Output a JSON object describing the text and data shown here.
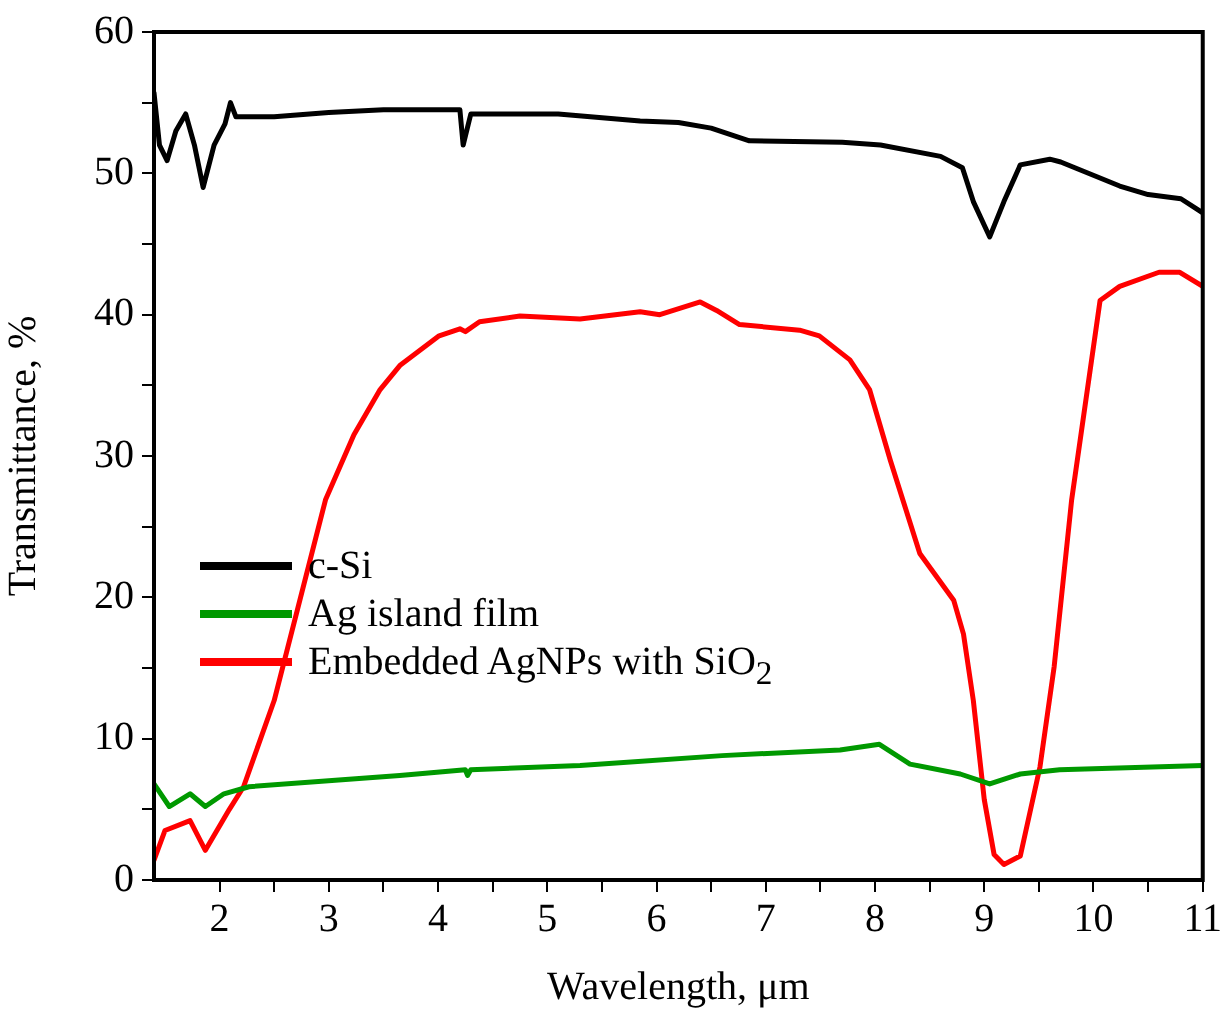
{
  "chart_data": {
    "type": "line",
    "xlabel": "Wavelength, μm",
    "ylabel": "Transmittance, %",
    "xlim": [
      1.4,
      11
    ],
    "ylim": [
      0,
      60
    ],
    "xticks": [
      2,
      {
        "value": 2.5,
        "label": null
      },
      3,
      {
        "value": 3.5,
        "label": null
      },
      4,
      {
        "value": 4.5,
        "label": null
      },
      5,
      {
        "value": 5.5,
        "label": null
      },
      6,
      {
        "value": 6.5,
        "label": null
      },
      7,
      {
        "value": 7.5,
        "label": null
      },
      8,
      {
        "value": 8.5,
        "label": null
      },
      9,
      {
        "value": 9.5,
        "label": null
      },
      10,
      {
        "value": 10.5,
        "label": null
      },
      11
    ],
    "yticks": [
      0,
      {
        "value": 5,
        "label": null
      },
      10,
      {
        "value": 15,
        "label": null
      },
      20,
      {
        "value": 25,
        "label": null
      },
      30,
      {
        "value": 35,
        "label": null
      },
      40,
      {
        "value": 45,
        "label": null
      },
      50,
      {
        "value": 55,
        "label": null
      },
      60
    ],
    "grid": false,
    "legend": "left",
    "marker": "none",
    "line_style": "solid",
    "series": [
      {
        "name": "c-Si",
        "color": "#000000",
        "x": [
          1.4,
          1.45,
          1.52,
          1.6,
          1.69,
          1.77,
          1.85,
          1.95,
          2.05,
          2.1,
          2.15,
          2.5,
          3,
          3.5,
          4.2,
          4.23,
          4.3,
          5.1,
          5.85,
          6.2,
          6.5,
          6.85,
          7.7,
          8.05,
          8.6,
          8.8,
          8.9,
          9.05,
          9.18,
          9.33,
          9.6,
          9.7,
          10.24,
          10.5,
          10.8,
          11
        ],
        "values": [
          55.7,
          52,
          50.9,
          53,
          54.2,
          52,
          49,
          52,
          53.5,
          55,
          54,
          54,
          54.3,
          54.5,
          54.5,
          52,
          54.2,
          54.2,
          53.7,
          53.6,
          53.2,
          52.3,
          52.2,
          52,
          51.2,
          50.4,
          48,
          45.5,
          48,
          50.6,
          51,
          50.8,
          49.1,
          48.5,
          48.2,
          47.2
        ]
      },
      {
        "name": "Ag island film",
        "color": "#009900",
        "x": [
          1.4,
          1.54,
          1.73,
          1.87,
          2.04,
          2.27,
          3.65,
          4.25,
          4.27,
          4.3,
          5.3,
          6.6,
          7.68,
          8.04,
          8.32,
          8.78,
          9.05,
          9.33,
          9.69,
          11
        ],
        "values": [
          6.8,
          5.2,
          6.1,
          5.2,
          6.1,
          6.6,
          7.4,
          7.8,
          7.4,
          7.8,
          8.1,
          8.8,
          9.2,
          9.6,
          8.2,
          7.5,
          6.8,
          7.5,
          7.8,
          8.1
        ]
      },
      {
        "name": "Embedded AgNPs with SiO$_{2}$",
        "color": "#ff0000",
        "x": [
          1.4,
          1.5,
          1.73,
          1.87,
          2.09,
          2.22,
          2.5,
          2.97,
          3.23,
          3.47,
          3.65,
          4.01,
          4.2,
          4.25,
          4.38,
          4.75,
          5.3,
          5.85,
          6.03,
          6.4,
          6.55,
          6.76,
          7.31,
          7.49,
          7.77,
          7.95,
          8.14,
          8.41,
          8.72,
          8.81,
          8.9,
          9.0,
          9.09,
          9.18,
          9.33,
          9.51,
          9.64,
          9.8,
          10.06,
          10.24,
          10.6,
          10.79,
          11
        ],
        "values": [
          1.4,
          3.5,
          4.2,
          2.1,
          5,
          6.6,
          12.7,
          26.9,
          31.5,
          34.7,
          36.4,
          38.5,
          39,
          38.8,
          39.5,
          39.9,
          39.7,
          40.2,
          40,
          40.9,
          40.3,
          39.3,
          38.9,
          38.5,
          36.8,
          34.7,
          29.7,
          23.1,
          19.8,
          17.4,
          12.7,
          5.7,
          1.8,
          1.1,
          1.7,
          8,
          15.1,
          26.9,
          41,
          42,
          43,
          43,
          42
        ]
      }
    ]
  }
}
